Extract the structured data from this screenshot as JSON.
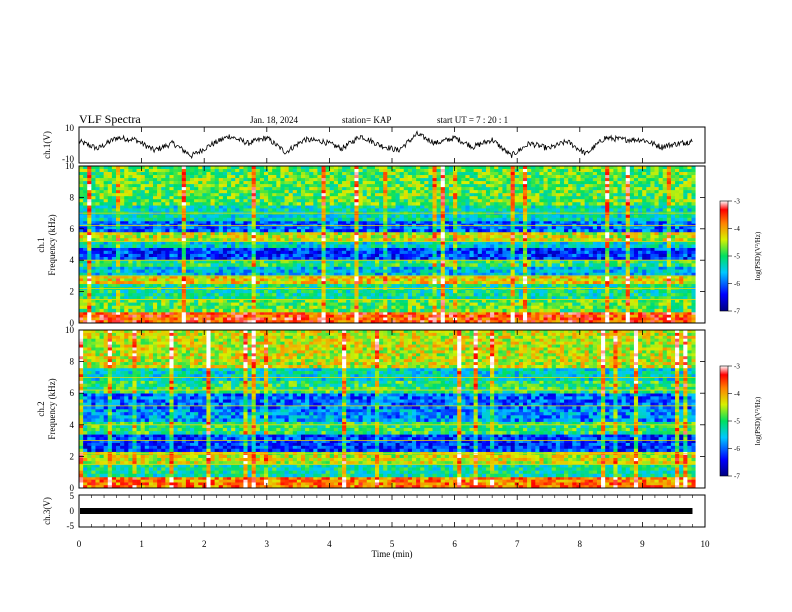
{
  "header": {
    "title": "VLF Spectra",
    "date": "Jan. 18, 2024",
    "station": "station= KAP",
    "start": "start UT =   7 : 20 : 1"
  },
  "chart_data": [
    {
      "type": "line",
      "panel": "ch1-waveform",
      "ylabel": "ch.1(V)",
      "ylim": [
        -10,
        10
      ],
      "yticks": [
        "10",
        "-10"
      ],
      "x": [
        0,
        0.3,
        0.6,
        0.9,
        1.2,
        1.5,
        1.8,
        2.1,
        2.4,
        2.7,
        3.0,
        3.3,
        3.6,
        3.9,
        4.2,
        4.5,
        4.8,
        5.1,
        5.4,
        5.7,
        6.0,
        6.3,
        6.6,
        6.9,
        7.2,
        7.5,
        7.8,
        8.1,
        8.4,
        8.7,
        9.0,
        9.3,
        9.6,
        9.8
      ],
      "y": [
        2,
        -2,
        4,
        3,
        -3,
        1,
        -6,
        0,
        5,
        1,
        4,
        -4,
        3,
        2,
        -2,
        5,
        0,
        -3,
        6,
        1,
        4,
        -1,
        3,
        -6,
        1,
        -2,
        2,
        -5,
        4,
        3,
        3,
        -1,
        1,
        2
      ]
    },
    {
      "type": "heatmap",
      "panel": "ch1-spectrogram",
      "ylabel_line1": "ch.1",
      "ylabel_line2": "Frequency (kHz)",
      "ylim": [
        0,
        10
      ],
      "yticks": [
        "0",
        "2",
        "4",
        "6",
        "8",
        "10"
      ],
      "freq_bands_khz": [
        0,
        0.7,
        1.5,
        2.5,
        3.0,
        3.6,
        4.0,
        4.8,
        5.2,
        5.8,
        6.5,
        7.5,
        10
      ],
      "log_psd_by_band": [
        -3.6,
        -4.8,
        -5.2,
        -4.2,
        -5.6,
        -5.0,
        -6.2,
        -5.4,
        -4.4,
        -6.0,
        -5.3,
        -4.8
      ],
      "colorbar": {
        "label": "log(PSD)(V²/Hz)",
        "ticks": [
          "-3",
          "-4",
          "-5",
          "-6",
          "-7"
        ],
        "range": [
          -7,
          -3
        ]
      }
    },
    {
      "type": "heatmap",
      "panel": "ch2-spectrogram",
      "ylabel_line1": "ch.2",
      "ylabel_line2": "Frequency (kHz)",
      "ylim": [
        0,
        10
      ],
      "yticks": [
        "0",
        "2",
        "4",
        "6",
        "8",
        "10"
      ],
      "freq_bands_khz": [
        0,
        0.7,
        1.5,
        2.3,
        3.4,
        4.2,
        5.0,
        6.0,
        6.8,
        7.6,
        10
      ],
      "log_psd_by_band": [
        -3.8,
        -5.2,
        -4.4,
        -6.2,
        -5.0,
        -5.8,
        -6.0,
        -5.0,
        -5.4,
        -4.4
      ],
      "colorbar": {
        "label": "log(PSD)(V²/Hz)",
        "ticks": [
          "-3",
          "-4",
          "-5",
          "-6",
          "-7"
        ],
        "range": [
          -7,
          -3
        ]
      }
    },
    {
      "type": "line",
      "panel": "ch3-trace",
      "ylabel": "ch.3(V)",
      "ylim": [
        -5,
        5
      ],
      "yticks": [
        "5",
        "0",
        "-5"
      ],
      "x": [
        0,
        9.8
      ],
      "y": [
        0,
        0
      ]
    }
  ],
  "xaxis": {
    "label": "Time (min)",
    "ticks": [
      "0",
      "1",
      "2",
      "3",
      "4",
      "5",
      "6",
      "7",
      "8",
      "9",
      "10"
    ],
    "xlim": [
      0,
      10
    ]
  }
}
